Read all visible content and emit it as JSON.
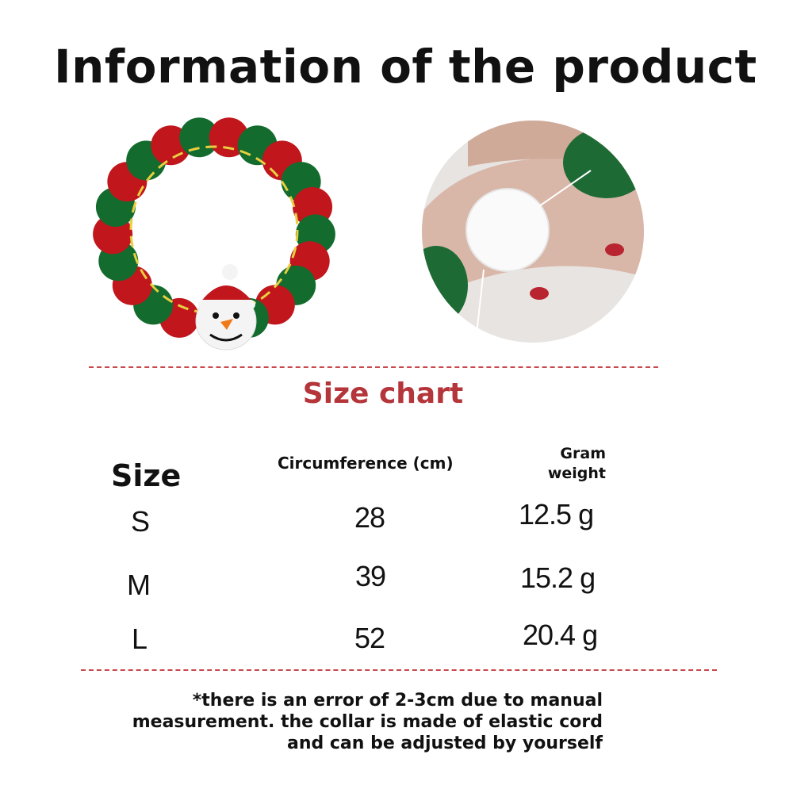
{
  "title": "Information of the product",
  "size_chart_title": "Size chart",
  "table": {
    "headers": {
      "size": "Size",
      "circumference": "Circumference (cm)",
      "gram_weight": "Gram weight"
    },
    "rows": [
      {
        "size": "S",
        "circumference": "28",
        "weight": "12.5 g"
      },
      {
        "size": "M",
        "circumference": "39",
        "weight": "15.2 g"
      },
      {
        "size": "L",
        "circumference": "52",
        "weight": "20.4 g"
      }
    ]
  },
  "note": "*there is an error of 2-3cm due to manual measurement. the collar is made of elastic cord and can be adjusted by yourself",
  "colors": {
    "accent_red": "#b4353a",
    "pompom_red": "#c0161c",
    "pompom_green": "#136b2e",
    "divider": "#c8484d"
  }
}
